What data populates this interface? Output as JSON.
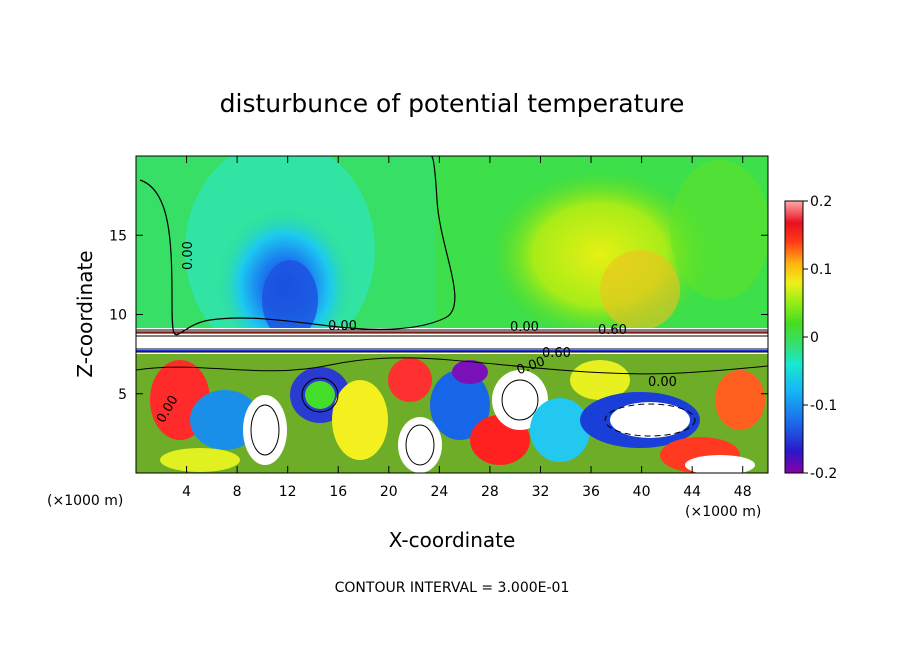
{
  "chart_data": {
    "type": "heatmap",
    "title": "disturbunce of potential temperature",
    "xlabel": "X-coordinate",
    "ylabel": "Z-coordinate",
    "x_unit": "(×1000 m)",
    "xlim": [
      0,
      50
    ],
    "ylim": [
      0,
      20
    ],
    "x_ticks": [
      4,
      8,
      12,
      16,
      20,
      24,
      28,
      32,
      36,
      40,
      44,
      48
    ],
    "y_ticks": [
      5,
      10,
      15
    ],
    "colorbar": {
      "ticks": [
        "0.2",
        "0.1",
        "0",
        "-0.1",
        "-0.2"
      ],
      "range": [
        -0.2,
        0.2
      ]
    },
    "contour_labels": [
      "0.00",
      "0.00",
      "0.60",
      "0.00",
      "0.00",
      "0.60",
      "0.00",
      "0.00"
    ],
    "footer": "CONTOUR INTERVAL = 3.000E-01"
  }
}
